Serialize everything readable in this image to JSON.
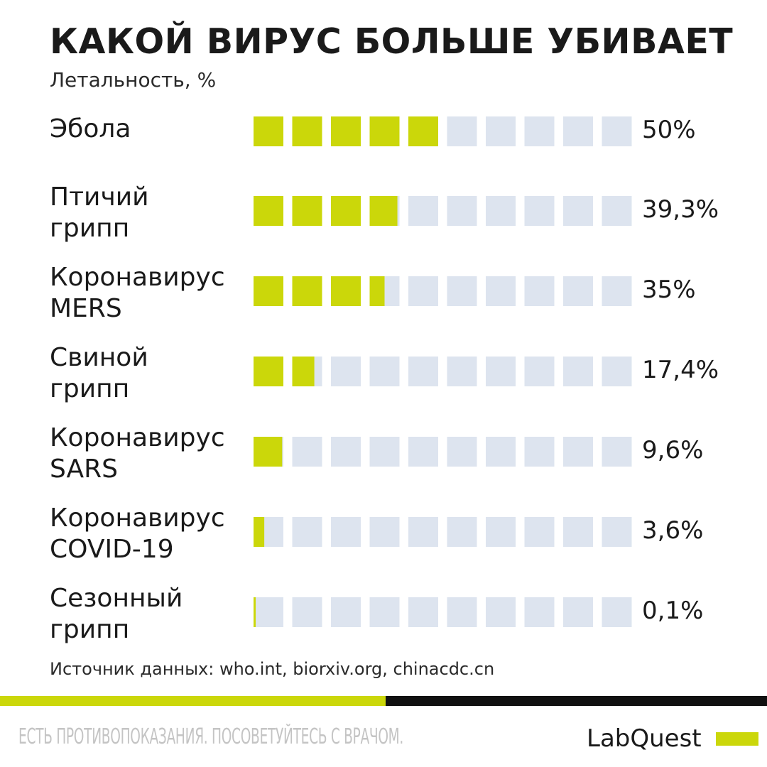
{
  "header": {
    "title": "КАКОЙ ВИРУС БОЛЬШЕ УБИВАЕТ",
    "subtitle": "Летальность, %"
  },
  "chart_data": {
    "type": "bar",
    "title": "КАКОЙ ВИРУС БОЛЬШЕ УБИВАЕТ",
    "ylabel": "Летальность, %",
    "unit": "%",
    "range": [
      0,
      100
    ],
    "squares": 10,
    "categories": [
      [
        "Эбола"
      ],
      [
        "Птичий",
        "грипп"
      ],
      [
        "Коронавирус",
        "MERS"
      ],
      [
        "Свиной",
        "грипп"
      ],
      [
        "Коронавирус",
        "SARS"
      ],
      [
        "Коронавирус",
        "COVID-19"
      ],
      [
        "Сезонный",
        "грипп"
      ]
    ],
    "values": [
      50,
      39.3,
      35,
      17.4,
      9.6,
      3.6,
      0.1
    ],
    "value_labels": [
      "50%",
      "39,3%",
      "35%",
      "17,4%",
      "9,6%",
      "3,6%",
      "0,1%"
    ],
    "colors": {
      "filled": "#cbd70a",
      "empty": "#dde4ef"
    }
  },
  "footer": {
    "source": "Источник данных: who.int, biorxiv.org, chinacdc.cn",
    "disclaimer": "ЕСТЬ ПРОТИВОПОКАЗАНИЯ. ПОСОВЕТУЙТЕСЬ С ВРАЧОМ.",
    "brand": "LabQuest",
    "colors": {
      "accent": "#cbd70a",
      "dark": "#111111"
    }
  }
}
